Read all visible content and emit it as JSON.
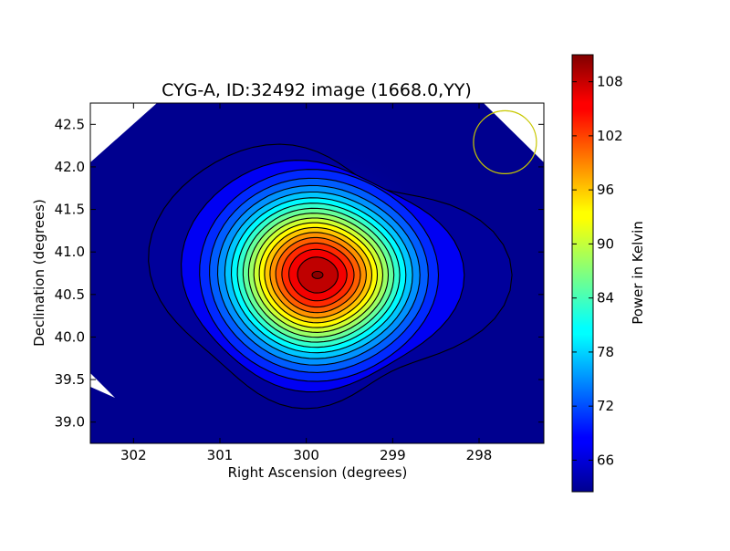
{
  "chart_data": {
    "type": "heatmap",
    "title": "CYG-A, ID:32492 image (1668.0,YY)",
    "xlabel": "Right Ascension (degrees)",
    "ylabel": "Declination (degrees)",
    "xlim": [
      302.5,
      297.25
    ],
    "ylim": [
      38.75,
      42.75
    ],
    "x_ticks": [
      302,
      301,
      300,
      299,
      298
    ],
    "x_tick_labels": [
      "302",
      "301",
      "300",
      "299",
      "298"
    ],
    "y_ticks": [
      39.0,
      39.5,
      40.0,
      40.5,
      41.0,
      41.5,
      42.0,
      42.5
    ],
    "y_tick_labels": [
      "39.0",
      "39.5",
      "40.0",
      "40.5",
      "41.0",
      "41.5",
      "42.0",
      "42.5"
    ],
    "colorbar": {
      "label": "Power in Kelvin",
      "range": [
        62.5,
        111
      ],
      "ticks": [
        66,
        72,
        78,
        84,
        90,
        96,
        102,
        108
      ],
      "tick_labels": [
        "66",
        "72",
        "78",
        "84",
        "90",
        "96",
        "102",
        "108"
      ],
      "colormap": "jet"
    },
    "source": {
      "ra": 299.87,
      "dec": 40.73,
      "peak": 110.5,
      "background": 63.5
    },
    "contour_levels": [
      65.5,
      68,
      70.5,
      73,
      75.5,
      78,
      80.5,
      83,
      85.5,
      88,
      90.5,
      93,
      95.5,
      98,
      100.5,
      103,
      105.5,
      108
    ],
    "beam_marker": {
      "ra": 297.7,
      "dec": 42.29,
      "radius_deg": 0.37,
      "color": "#c8c800"
    },
    "colors": {
      "map_background": "#00008f",
      "contour": "#000000"
    }
  }
}
